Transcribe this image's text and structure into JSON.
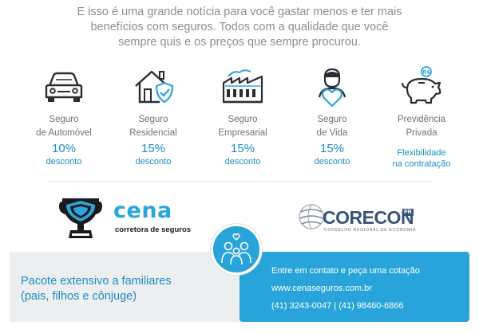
{
  "intro": {
    "line1": "E isso é uma grande notícia para você gastar menos e ter mais",
    "line2": "benefícios com seguros. Todos com a qualidade que você",
    "line3": "sempre quis e os preços que sempre procurou."
  },
  "products": [
    {
      "name1": "Seguro",
      "name2": "de Automóvel",
      "pct": "10%",
      "sub": "desconto",
      "icon": "car-icon"
    },
    {
      "name1": "Seguro",
      "name2": "Residencial",
      "pct": "15%",
      "sub": "desconto",
      "icon": "house-shield-icon"
    },
    {
      "name1": "Seguro",
      "name2": "Empresarial",
      "pct": "15%",
      "sub": "desconto",
      "icon": "factory-icon"
    },
    {
      "name1": "Seguro",
      "name2": "de Vida",
      "pct": "15%",
      "sub": "desconto",
      "icon": "person-heart-icon"
    },
    {
      "name1": "Previdência",
      "name2": "Privada",
      "flex1": "Flexibilidade",
      "flex2": "na contratação",
      "icon": "piggy-bank-icon"
    }
  ],
  "cena": {
    "brand": "cena",
    "tagline": "corretora de seguros"
  },
  "corecon": {
    "word": "CORECON",
    "badge": "PR",
    "subtitle": "CONSELHO REGIONAL DE ECONOMIA"
  },
  "family": {
    "line1": "Pacote extensivo a familiares",
    "line2": "(pais, filhos e cônjuge)"
  },
  "contact": {
    "line1": "Entre em contato e peça uma cotação",
    "line2": "www.cenaseguros.com.br",
    "line3": "(41) 3243-0047 |  (41) 98460-6866"
  },
  "colors": {
    "accent": "#28a4db",
    "text_blue": "#1b8ec8",
    "grey_text": "#8a8f95",
    "corecon": "#36547a"
  }
}
